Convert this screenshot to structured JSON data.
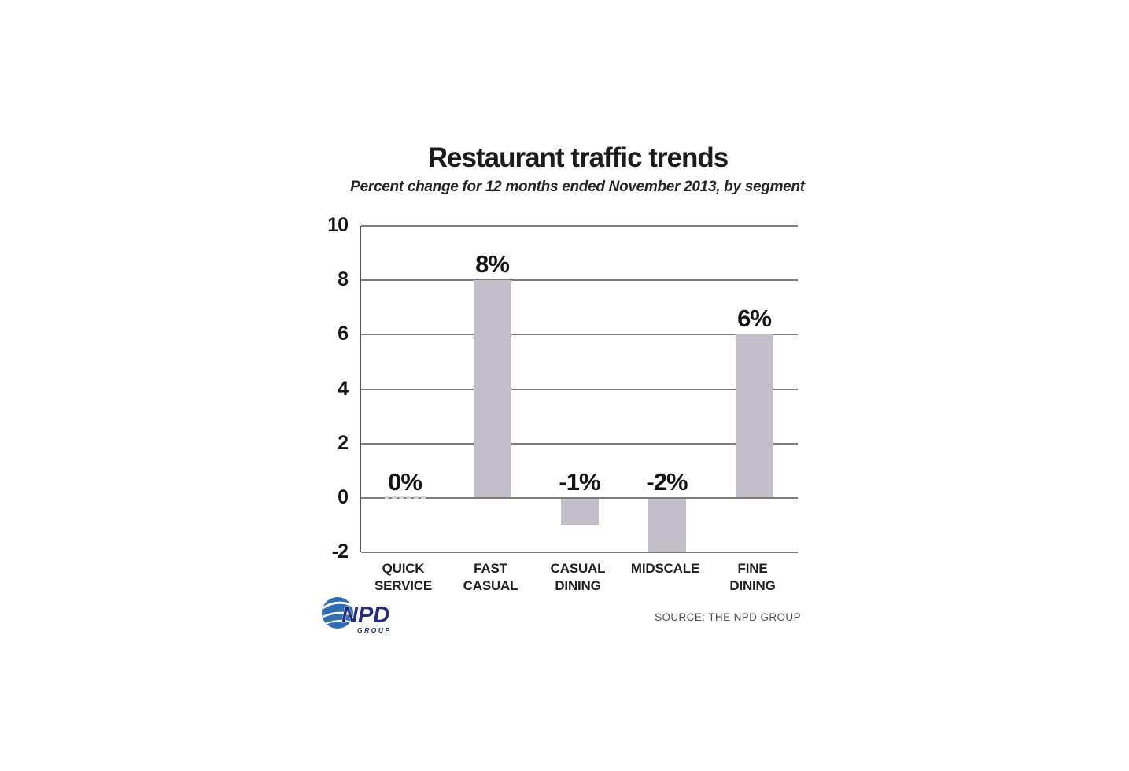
{
  "title": "Restaurant traffic trends",
  "subtitle": "Percent change for 12 months ended November 2013, by segment",
  "source": "SOURCE: THE NPD GROUP",
  "logo": {
    "text": "NPD",
    "subtext": "GROUP"
  },
  "colors": {
    "bar": "#c3bec9",
    "grid": "#7b7b7b",
    "axis": "#585858",
    "text": "#1a1a1a",
    "source_text": "#4f4f4f",
    "logo_navy": "#232c7c",
    "logo_blue": "#2e6db4",
    "zero_dash": "#d5d1d9"
  },
  "chart_data": {
    "type": "bar",
    "title": "Restaurant traffic trends",
    "subtitle": "Percent change for 12 months ended November 2013, by segment",
    "categories": [
      "Quick Service",
      "Fast Casual",
      "Casual Dining",
      "Midscale",
      "Fine Dining"
    ],
    "category_labels": [
      [
        "QUICK",
        "SERVICE"
      ],
      [
        "FAST",
        "CASUAL"
      ],
      [
        "CASUAL",
        "DINING"
      ],
      [
        "MIDSCALE"
      ],
      [
        "FINE",
        "DINING"
      ]
    ],
    "values": [
      0,
      8,
      -1,
      -2,
      6
    ],
    "value_labels": [
      "0%",
      "8%",
      "-1%",
      "-2%",
      "6%"
    ],
    "xlabel": "",
    "ylabel": "",
    "ylim": [
      -2,
      10
    ],
    "yticks": [
      10,
      8,
      6,
      4,
      2,
      0,
      -2
    ],
    "grid": true,
    "legend": false,
    "zero_value_rendering": "dashed segment on zero line"
  }
}
